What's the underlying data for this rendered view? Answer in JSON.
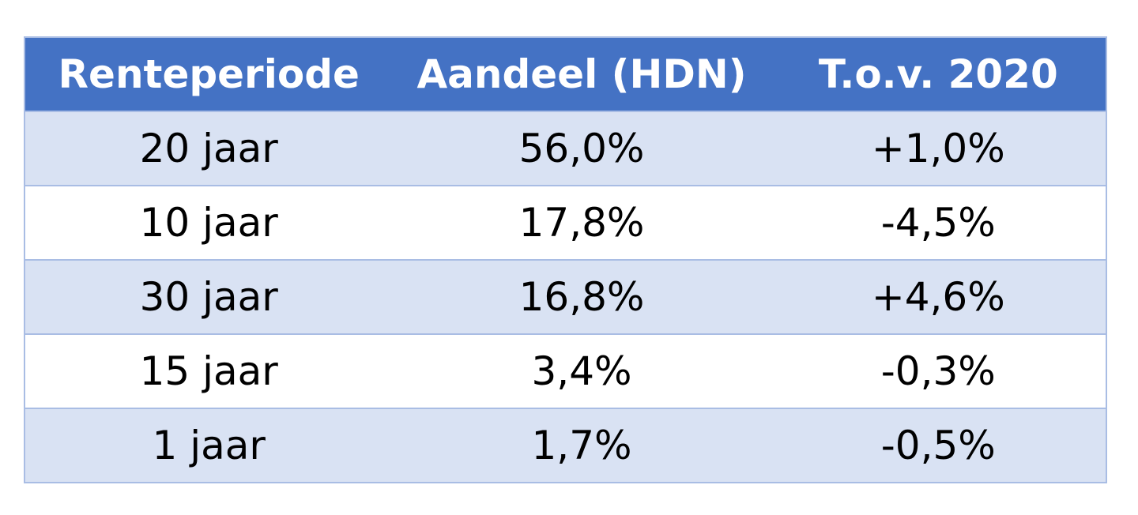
{
  "table": {
    "header": [
      "Renteperiode",
      "Aandeel (HDN)",
      "T.o.v. 2020"
    ],
    "rows": [
      [
        "20 jaar",
        "56,0%",
        "+1,0%"
      ],
      [
        "10 jaar",
        "17,8%",
        "-4,5%"
      ],
      [
        "30 jaar",
        "16,8%",
        "+4,6%"
      ],
      [
        "15 jaar",
        "3,4%",
        "-0,3%"
      ],
      [
        "1 jaar",
        "1,7%",
        "-0,5%"
      ]
    ]
  }
}
